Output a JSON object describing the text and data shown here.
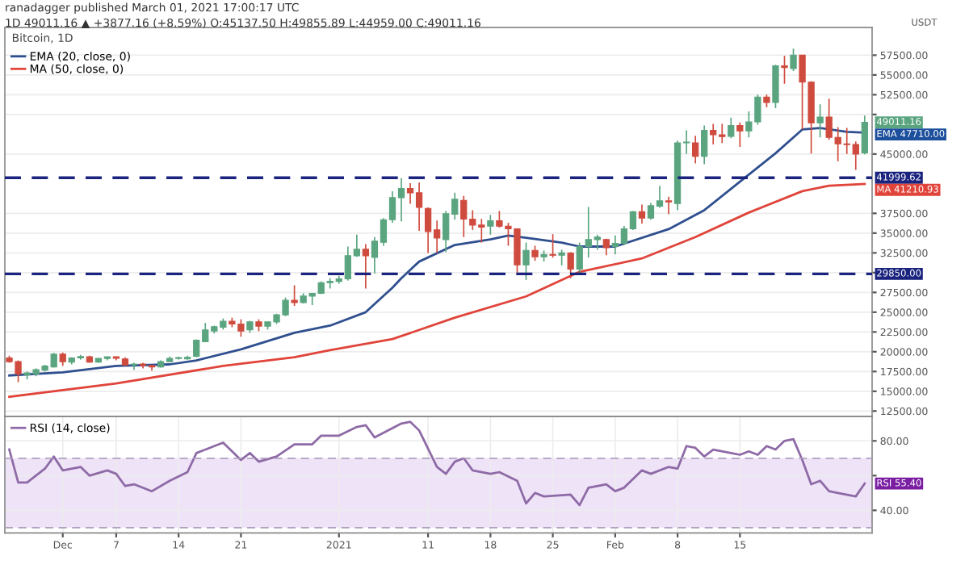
{
  "chart_data": [
    {
      "type": "candlestick",
      "title": "Bitcoin, 1D",
      "ylabel": "USDT",
      "annotations": [
        "ranadagger published March 01, 2021 17:00:17 UTC",
        "1D 49011.16 ▲ +3877.16 (+8.59%) O:45137.50 H:49855.89 L:44959.00 C:49011.16",
        {
          "text": "49011.16",
          "x": "2021-03-01",
          "y": 49011.16
        },
        {
          "text": "EMA 47710.00",
          "x": "2021-03-01",
          "y": 47710
        },
        {
          "text": "MA 41210.93",
          "x": "2021-03-01",
          "y": 41210.93
        }
      ],
      "x": [
        "2020-11-25",
        "2020-11-26",
        "2020-11-27",
        "2020-11-28",
        "2020-11-29",
        "2020-11-30",
        "2020-12-01",
        "2020-12-02",
        "2020-12-03",
        "2020-12-04",
        "2020-12-05",
        "2020-12-06",
        "2020-12-07",
        "2020-12-08",
        "2020-12-09",
        "2020-12-10",
        "2020-12-11",
        "2020-12-12",
        "2020-12-13",
        "2020-12-14",
        "2020-12-15",
        "2020-12-16",
        "2020-12-17",
        "2020-12-18",
        "2020-12-19",
        "2020-12-20",
        "2020-12-21",
        "2020-12-22",
        "2020-12-23",
        "2020-12-24",
        "2020-12-25",
        "2020-12-26",
        "2020-12-27",
        "2020-12-28",
        "2020-12-29",
        "2020-12-30",
        "2020-12-31",
        "2021-01-01",
        "2021-01-02",
        "2021-01-03",
        "2021-01-04",
        "2021-01-05",
        "2021-01-06",
        "2021-01-07",
        "2021-01-08",
        "2021-01-09",
        "2021-01-10",
        "2021-01-11",
        "2021-01-12",
        "2021-01-13",
        "2021-01-14",
        "2021-01-15",
        "2021-01-16",
        "2021-01-17",
        "2021-01-18",
        "2021-01-19",
        "2021-01-20",
        "2021-01-21",
        "2021-01-22",
        "2021-01-23",
        "2021-01-24",
        "2021-01-25",
        "2021-01-26",
        "2021-01-27",
        "2021-01-28",
        "2021-01-29",
        "2021-01-30",
        "2021-01-31",
        "2021-02-01",
        "2021-02-02",
        "2021-02-03",
        "2021-02-04",
        "2021-02-05",
        "2021-02-06",
        "2021-02-07",
        "2021-02-08",
        "2021-02-09",
        "2021-02-10",
        "2021-02-11",
        "2021-02-12",
        "2021-02-13",
        "2021-02-14",
        "2021-02-15",
        "2021-02-16",
        "2021-02-17",
        "2021-02-18",
        "2021-02-19",
        "2021-02-20",
        "2021-02-21",
        "2021-02-22",
        "2021-02-23",
        "2021-02-24",
        "2021-02-25",
        "2021-02-26",
        "2021-02-27",
        "2021-02-28",
        "2021-03-01"
      ],
      "ohlc": [
        [
          19220,
          19500,
          18600,
          18744
        ],
        [
          18744,
          18900,
          16160,
          17180
        ],
        [
          17044,
          17500,
          16500,
          17316
        ],
        [
          17180,
          17900,
          16900,
          17724
        ],
        [
          17656,
          18350,
          17500,
          18200
        ],
        [
          18064,
          19850,
          18000,
          19696
        ],
        [
          19696,
          19900,
          18200,
          18744
        ],
        [
          18676,
          19300,
          18400,
          19220
        ],
        [
          19220,
          19600,
          19000,
          19400
        ],
        [
          19356,
          19500,
          18600,
          18676
        ],
        [
          18676,
          19200,
          18600,
          19152
        ],
        [
          19152,
          19400,
          18900,
          19356
        ],
        [
          19356,
          19400,
          18900,
          19180
        ],
        [
          19084,
          19300,
          18200,
          18336
        ],
        [
          18336,
          18600,
          17700,
          18440
        ],
        [
          18440,
          18600,
          17900,
          18260
        ],
        [
          18260,
          18300,
          17600,
          18064
        ],
        [
          18064,
          18900,
          18000,
          18744
        ],
        [
          18744,
          19400,
          18700,
          19152
        ],
        [
          19152,
          19350,
          19000,
          19260
        ],
        [
          19084,
          19500,
          19000,
          19288
        ],
        [
          19424,
          21550,
          19300,
          21464
        ],
        [
          21260,
          23640,
          21250,
          22756
        ],
        [
          22620,
          23300,
          22300,
          23164
        ],
        [
          23096,
          24200,
          22800,
          23844
        ],
        [
          23844,
          24300,
          23100,
          23504
        ],
        [
          23504,
          24100,
          21900,
          22620
        ],
        [
          22756,
          23900,
          22400,
          23776
        ],
        [
          23776,
          24100,
          22600,
          23232
        ],
        [
          23232,
          23800,
          22800,
          23776
        ],
        [
          23776,
          24800,
          23500,
          24660
        ],
        [
          24660,
          26850,
          24500,
          26496
        ],
        [
          26496,
          28400,
          25800,
          26224
        ],
        [
          26224,
          27400,
          26100,
          27040
        ],
        [
          27040,
          27400,
          25900,
          27380
        ],
        [
          27380,
          28900,
          27300,
          28740
        ],
        [
          28740,
          29300,
          28000,
          28900
        ],
        [
          28900,
          29600,
          28600,
          29216
        ],
        [
          29216,
          33300,
          29000,
          32140
        ],
        [
          32140,
          34800,
          32000,
          32956
        ],
        [
          32956,
          33600,
          28000,
          32140
        ],
        [
          31936,
          34500,
          29900,
          33976
        ],
        [
          33840,
          36900,
          33400,
          36696
        ],
        [
          36696,
          40300,
          36300,
          39484
        ],
        [
          39484,
          41950,
          36500,
          40640
        ],
        [
          40640,
          41300,
          38700,
          40096
        ],
        [
          40096,
          41400,
          35300,
          38260
        ],
        [
          38124,
          38250,
          32480,
          35200
        ],
        [
          35404,
          36600,
          32500,
          34384
        ],
        [
          34180,
          37800,
          32600,
          37444
        ],
        [
          37376,
          40100,
          36700,
          39280
        ],
        [
          39144,
          39700,
          34500,
          36764
        ],
        [
          36764,
          37900,
          35400,
          36016
        ],
        [
          36016,
          36800,
          33800,
          35744
        ],
        [
          35880,
          37300,
          34800,
          36560
        ],
        [
          36560,
          37800,
          35700,
          35880
        ],
        [
          35880,
          36300,
          33400,
          35540
        ],
        [
          35540,
          35600,
          30000,
          30984
        ],
        [
          30984,
          33800,
          29080,
          32820
        ],
        [
          32820,
          33400,
          31500,
          32004
        ],
        [
          32004,
          32800,
          31400,
          32300
        ],
        [
          32300,
          34860,
          31900,
          32200
        ],
        [
          32200,
          32900,
          30900,
          32500
        ],
        [
          32480,
          32600,
          29300,
          30440
        ],
        [
          30440,
          33800,
          29900,
          33300
        ],
        [
          33296,
          38300,
          31900,
          34180
        ],
        [
          34180,
          34800,
          32900,
          34500
        ],
        [
          34180,
          34300,
          32200,
          33160
        ],
        [
          33296,
          34700,
          32300,
          33704
        ],
        [
          33704,
          35900,
          33500,
          35540
        ],
        [
          35540,
          37800,
          35400,
          37716
        ],
        [
          37716,
          38600,
          36200,
          36900
        ],
        [
          36900,
          38800,
          36700,
          38464
        ],
        [
          38396,
          40980,
          38200,
          39076
        ],
        [
          39076,
          39600,
          37400,
          38940
        ],
        [
          38736,
          46700,
          37900,
          46420
        ],
        [
          46420,
          48000,
          45000,
          46500
        ],
        [
          46420,
          47300,
          43800,
          44720
        ],
        [
          44720,
          48600,
          43700,
          47984
        ],
        [
          47984,
          48800,
          46200,
          47440
        ],
        [
          47440,
          48800,
          46400,
          47200
        ],
        [
          47236,
          49600,
          47000,
          48596
        ],
        [
          48596,
          49000,
          45900,
          47916
        ],
        [
          47916,
          50400,
          47100,
          49072
        ],
        [
          49072,
          52500,
          48700,
          52200
        ],
        [
          52200,
          52500,
          50900,
          51520
        ],
        [
          51520,
          56300,
          50800,
          56144
        ],
        [
          56144,
          57400,
          53900,
          55940
        ],
        [
          55800,
          58320,
          55500,
          57500
        ],
        [
          57500,
          57500,
          48120,
          54100
        ],
        [
          54100,
          54200,
          45060,
          48936
        ],
        [
          48936,
          51300,
          47100,
          49684
        ],
        [
          49684,
          52000,
          46800,
          47100
        ],
        [
          47100,
          48400,
          44100,
          46284
        ],
        [
          46284,
          48300,
          45000,
          46200
        ],
        [
          46200,
          46600,
          43000,
          45000
        ],
        [
          45137.5,
          49855.89,
          44959,
          49011.16
        ]
      ],
      "series": [
        {
          "name": "EMA (20, close, 0)",
          "type": "line",
          "color": "#2f4f8f",
          "x": [
            "2020-11-25",
            "2020-12-01",
            "2020-12-07",
            "2020-12-13",
            "2020-12-16",
            "2020-12-21",
            "2020-12-27",
            "2020-12-31",
            "2021-01-04",
            "2021-01-07",
            "2021-01-08",
            "2021-01-10",
            "2021-01-14",
            "2021-01-18",
            "2021-01-20",
            "2021-01-22",
            "2021-01-26",
            "2021-01-28",
            "2021-02-01",
            "2021-02-07",
            "2021-02-11",
            "2021-02-15",
            "2021-02-19",
            "2021-02-22",
            "2021-02-24",
            "2021-02-27",
            "2021-03-01"
          ],
          "values": [
            17000,
            17400,
            18200,
            18400,
            18900,
            20300,
            22400,
            23300,
            25000,
            28100,
            29300,
            31400,
            33500,
            34200,
            34700,
            34400,
            33800,
            33300,
            33300,
            35500,
            37900,
            41500,
            45100,
            48100,
            48300,
            47800,
            47710
          ]
        },
        {
          "name": "MA (50, close, 0)",
          "type": "line",
          "color": "#e0443a",
          "x": [
            "2020-11-25",
            "2020-12-07",
            "2020-12-19",
            "2020-12-27",
            "2020-12-31",
            "2021-01-07",
            "2021-01-14",
            "2021-01-22",
            "2021-01-28",
            "2021-02-04",
            "2021-02-10",
            "2021-02-16",
            "2021-02-22",
            "2021-02-25",
            "2021-03-01"
          ],
          "values": [
            14300,
            16000,
            18200,
            19300,
            20200,
            21600,
            24300,
            27000,
            30100,
            31800,
            34500,
            37600,
            40300,
            41000,
            41210.93
          ]
        }
      ],
      "xlim": [
        "2020-11-24T12:00",
        "2021-03-01T20:00"
      ],
      "ylim": [
        11800,
        61000
      ],
      "yticks": [
        {
          "value": 12500,
          "label": "12500.00"
        },
        {
          "value": 15000,
          "label": "15000.00"
        },
        {
          "value": 17500,
          "label": "17500.00"
        },
        {
          "value": 20000,
          "label": "20000.00"
        },
        {
          "value": 22500,
          "label": "22500.00"
        },
        {
          "value": 25000,
          "label": "25000.00"
        },
        {
          "value": 27500,
          "label": "27500.00"
        },
        {
          "value": 30000,
          "label": null
        },
        {
          "value": 32500,
          "label": "32500.00"
        },
        {
          "value": 35000,
          "label": "35000.00"
        },
        {
          "value": 37500,
          "label": "37500.00"
        },
        {
          "value": 45000,
          "label": "45000.00"
        },
        {
          "value": 50000,
          "label": null
        },
        {
          "value": 52500,
          "label": "52500.00"
        },
        {
          "value": 55000,
          "label": "55000.00"
        },
        {
          "value": 57500,
          "label": "57500.00"
        }
      ],
      "ref_lines": [
        {
          "axis": "y",
          "value": 41999.62,
          "label": "41999.62",
          "color": "#1a237e",
          "line_style": "dashed"
        },
        {
          "axis": "y",
          "value": 29850,
          "label": "29850.00",
          "color": "#1a237e",
          "line_style": "dashed"
        }
      ],
      "grid": true,
      "legend": "top left",
      "tick_labels": "y"
    },
    {
      "type": "line",
      "series": [
        {
          "name": "RSI (14, close)",
          "color": "#8e6aa6",
          "x": [
            "2020-11-25",
            "2020-11-26",
            "2020-11-27",
            "2020-11-29",
            "2020-11-30",
            "2020-12-01",
            "2020-12-03",
            "2020-12-04",
            "2020-12-06",
            "2020-12-07",
            "2020-12-08",
            "2020-12-09",
            "2020-12-11",
            "2020-12-13",
            "2020-12-15",
            "2020-12-16",
            "2020-12-18",
            "2020-12-19",
            "2020-12-21",
            "2020-12-22",
            "2020-12-23",
            "2020-12-25",
            "2020-12-27",
            "2020-12-29",
            "2020-12-30",
            "2021-01-01",
            "2021-01-03",
            "2021-01-04",
            "2021-01-05",
            "2021-01-08",
            "2021-01-09",
            "2021-01-10",
            "2021-01-12",
            "2021-01-13",
            "2021-01-14",
            "2021-01-15",
            "2021-01-16",
            "2021-01-18",
            "2021-01-19",
            "2021-01-21",
            "2021-01-22",
            "2021-01-23",
            "2021-01-24",
            "2021-01-27",
            "2021-01-28",
            "2021-01-29",
            "2021-01-31",
            "2021-02-01",
            "2021-02-02",
            "2021-02-04",
            "2021-02-05",
            "2021-02-07",
            "2021-02-08",
            "2021-02-09",
            "2021-02-10",
            "2021-02-11",
            "2021-02-12",
            "2021-02-14",
            "2021-02-15",
            "2021-02-16",
            "2021-02-17",
            "2021-02-18",
            "2021-02-19",
            "2021-02-20",
            "2021-02-21",
            "2021-02-22",
            "2021-02-23",
            "2021-02-24",
            "2021-02-25",
            "2021-02-26",
            "2021-02-28",
            "2021-03-01"
          ],
          "values": [
            75,
            56,
            56,
            64,
            71,
            63,
            65,
            60,
            63,
            61,
            54,
            55,
            51,
            57,
            62,
            73,
            77,
            79,
            69,
            73,
            68,
            71,
            78,
            78,
            83,
            83,
            88,
            89,
            82,
            90,
            91,
            86,
            65,
            61,
            68,
            70,
            63,
            61,
            62,
            57,
            44,
            50,
            48,
            49,
            43,
            53,
            55,
            51,
            53,
            63,
            61,
            65,
            64,
            77,
            76,
            71,
            75,
            73,
            72,
            74,
            72,
            77,
            75,
            80,
            81,
            69,
            55,
            57,
            51,
            50,
            48,
            55.4
          ]
        }
      ],
      "annotations": [
        {
          "text": "RSI 55.40",
          "x": "2021-03-01",
          "y": 55.4
        }
      ],
      "xlim": [
        "2020-11-24T12:00",
        "2021-03-01T20:00"
      ],
      "ylim": [
        27,
        94
      ],
      "xticks": [
        {
          "value": "2020-12-01",
          "label": "Dec"
        },
        {
          "value": "2020-12-07",
          "label": "7"
        },
        {
          "value": "2020-12-14",
          "label": "14"
        },
        {
          "value": "2020-12-21",
          "label": "21"
        },
        {
          "value": "2021-01-01",
          "label": "2021"
        },
        {
          "value": "2021-01-11",
          "label": "11"
        },
        {
          "value": "2021-01-18",
          "label": "18"
        },
        {
          "value": "2021-01-25",
          "label": "25"
        },
        {
          "value": "2021-02-01",
          "label": "Feb"
        },
        {
          "value": "2021-02-08",
          "label": "8"
        },
        {
          "value": "2021-02-15",
          "label": "15"
        }
      ],
      "yticks": [
        {
          "value": 40,
          "label": "40.00"
        },
        {
          "value": 60,
          "label": null
        },
        {
          "value": 80,
          "label": "80.00"
        }
      ],
      "ref_lines": [
        {
          "axis": "y",
          "value": 70,
          "color": "#b0a0c0",
          "line_style": "dashed"
        },
        {
          "axis": "y",
          "value": 30,
          "color": "#b0a0c0",
          "line_style": "dashed"
        }
      ],
      "bands": [
        {
          "axis": "y",
          "from": 30,
          "to": 70,
          "color": "#efe3f8"
        }
      ],
      "grid": true,
      "legend": "top left"
    }
  ]
}
